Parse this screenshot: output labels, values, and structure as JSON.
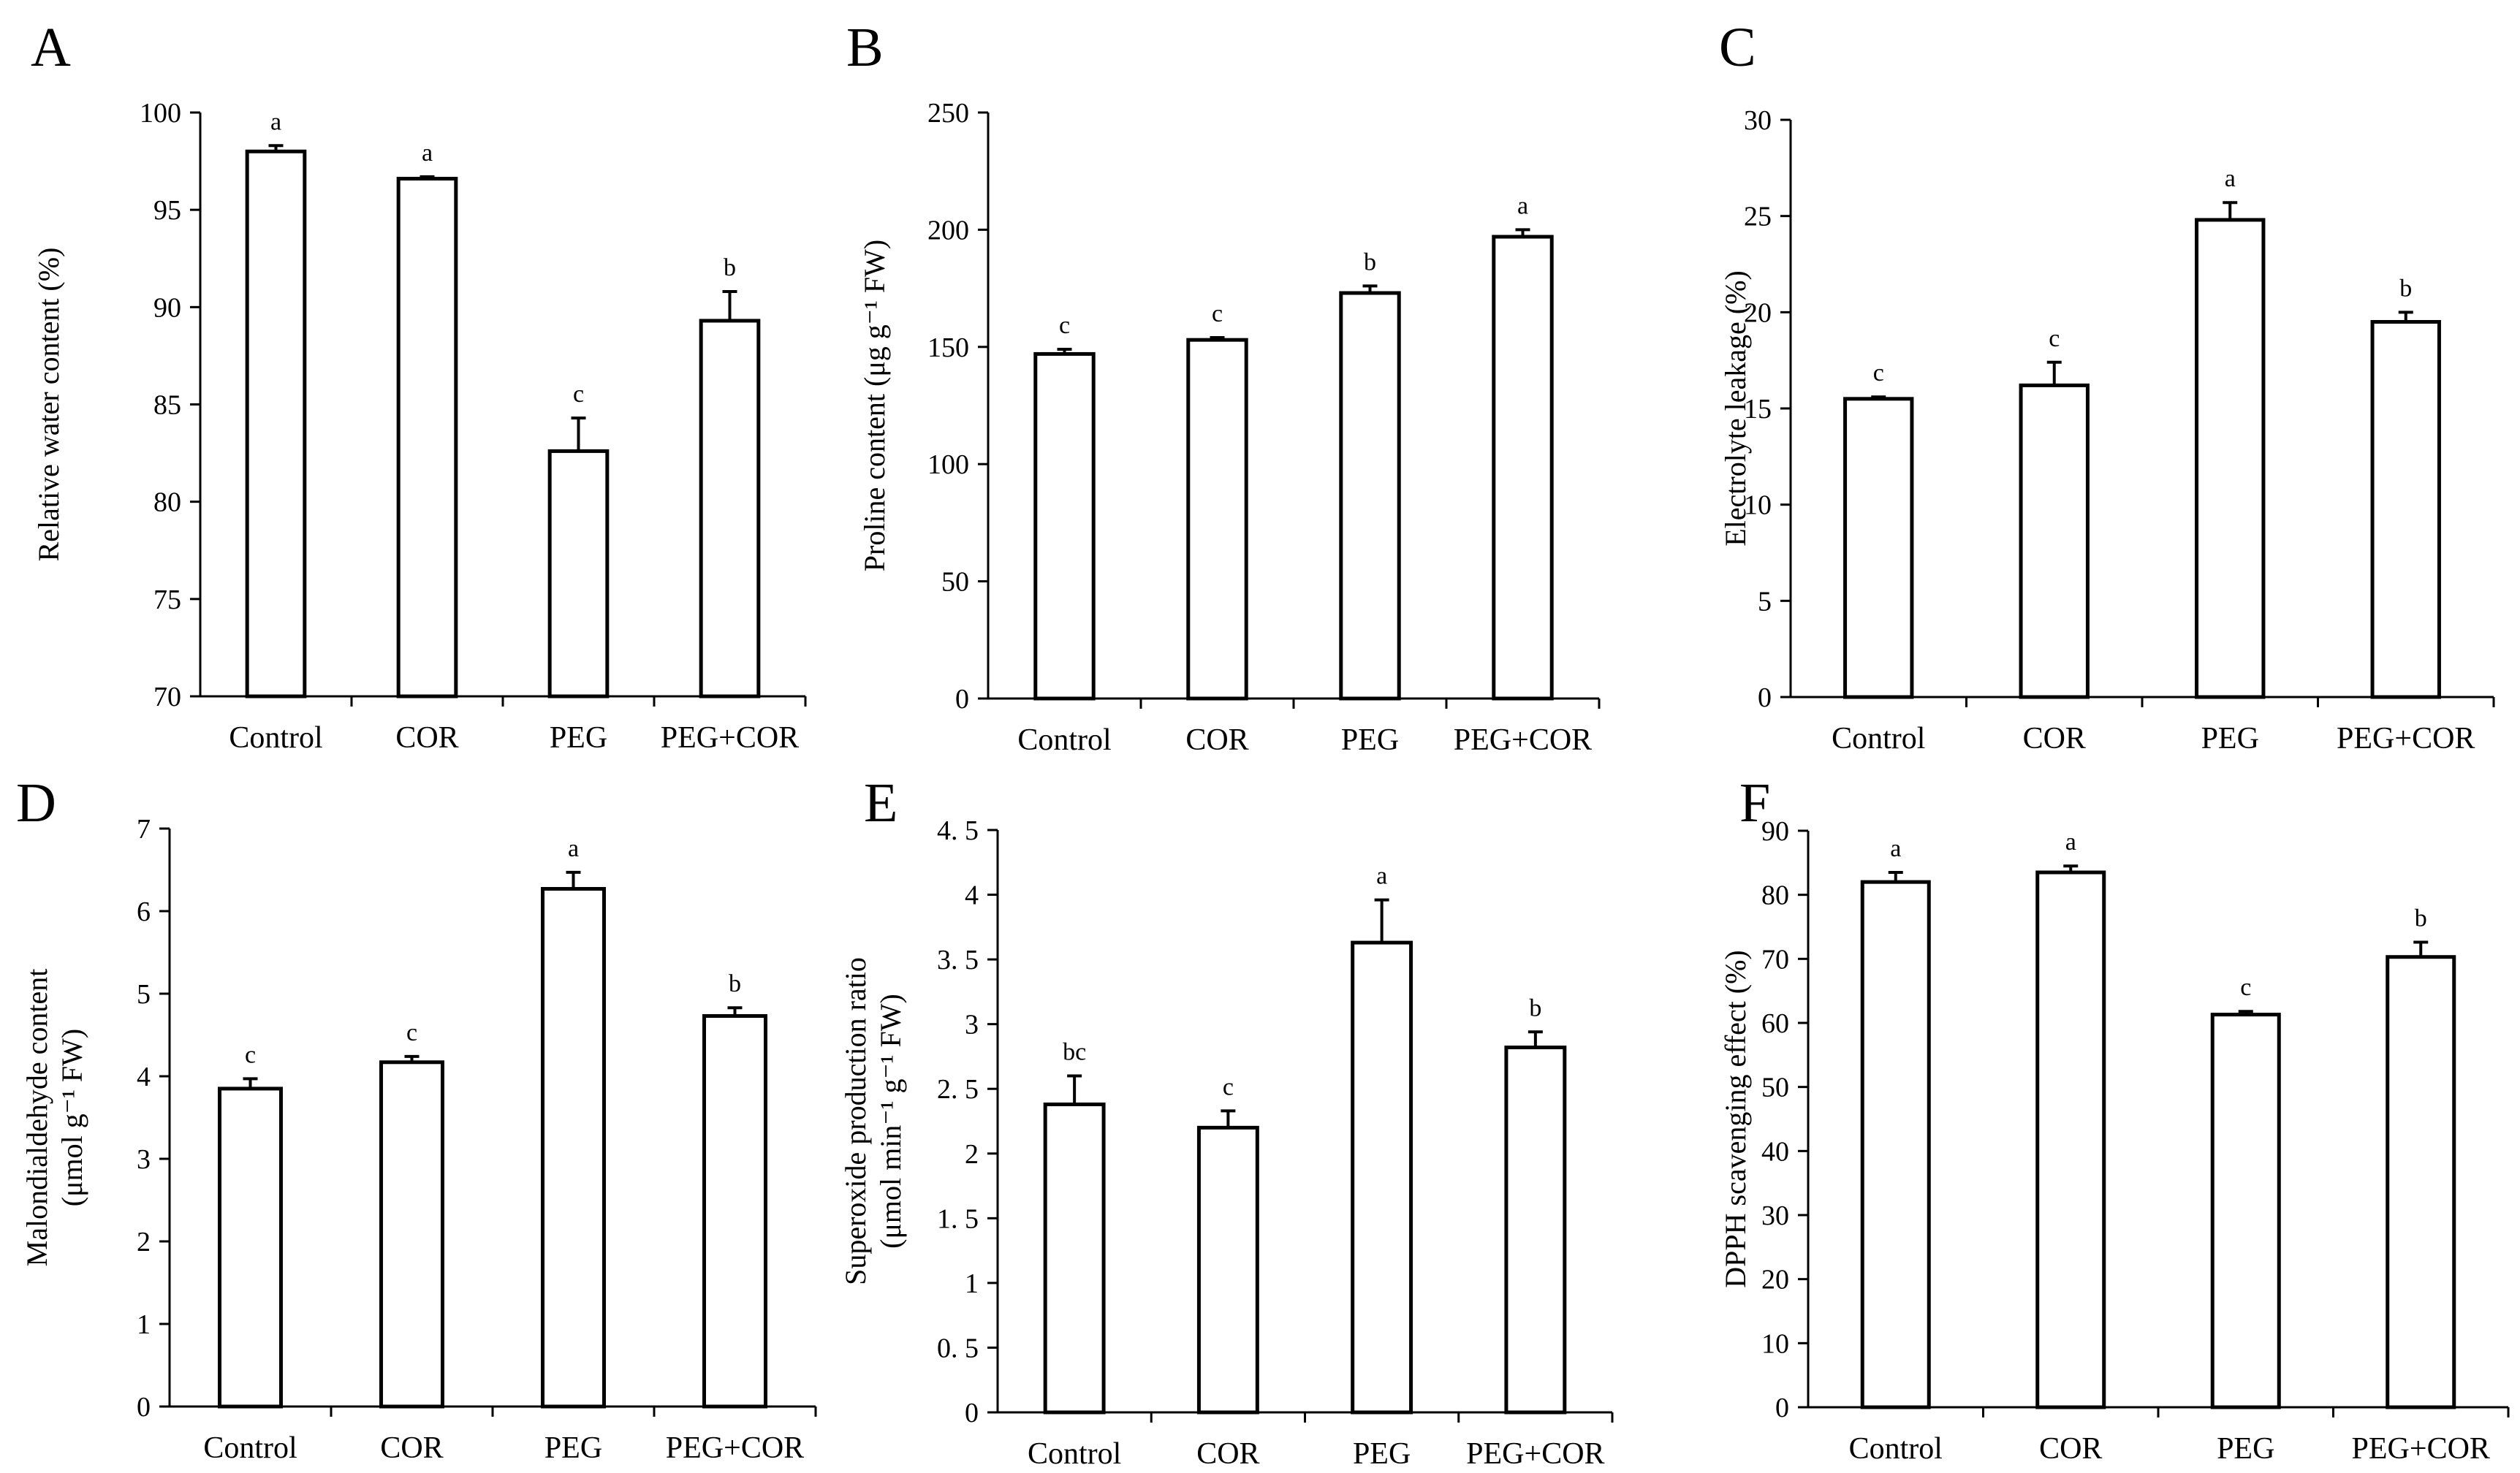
{
  "chart_data": [
    {
      "panel": "A",
      "type": "bar",
      "categories": [
        "Control",
        "COR",
        "PEG",
        "PEG+COR"
      ],
      "values": [
        98.0,
        96.6,
        82.6,
        89.3
      ],
      "errors": [
        0.3,
        0.1,
        1.7,
        1.5
      ],
      "significance": [
        "a",
        "a",
        "c",
        "b"
      ],
      "ylabel_lines": [
        "Relative water content (%)"
      ],
      "ylim": [
        70,
        100
      ],
      "yticks": [
        70,
        75,
        80,
        85,
        90,
        95,
        100
      ],
      "ytick_labels": [
        "70",
        "75",
        "80",
        "85",
        "90",
        "95",
        "100"
      ]
    },
    {
      "panel": "B",
      "type": "bar",
      "categories": [
        "Control",
        "COR",
        "PEG",
        "PEG+COR"
      ],
      "values": [
        147,
        153,
        173,
        197
      ],
      "errors": [
        2,
        1,
        3,
        3
      ],
      "significance": [
        "c",
        "c",
        "b",
        "a"
      ],
      "ylabel_lines": [
        "Proline content (μg g⁻¹ FW)"
      ],
      "ylim": [
        0,
        250
      ],
      "yticks": [
        0,
        50,
        100,
        150,
        200,
        250
      ],
      "ytick_labels": [
        "0",
        "50",
        "100",
        "150",
        "200",
        "250"
      ]
    },
    {
      "panel": "C",
      "type": "bar",
      "categories": [
        "Control",
        "COR",
        "PEG",
        "PEG+COR"
      ],
      "values": [
        15.5,
        16.2,
        24.8,
        19.5
      ],
      "errors": [
        0.1,
        1.2,
        0.9,
        0.5
      ],
      "significance": [
        "c",
        "c",
        "a",
        "b"
      ],
      "ylabel_lines": [
        "Electrolyte leakage (%)"
      ],
      "ylim": [
        0,
        30
      ],
      "yticks": [
        0,
        5,
        10,
        15,
        20,
        25,
        30
      ],
      "ytick_labels": [
        "0",
        "5",
        "10",
        "15",
        "20",
        "25",
        "30"
      ]
    },
    {
      "panel": "D",
      "type": "bar",
      "categories": [
        "Control",
        "COR",
        "PEG",
        "PEG+COR"
      ],
      "values": [
        3.85,
        4.17,
        6.27,
        4.73
      ],
      "errors": [
        0.12,
        0.07,
        0.2,
        0.1
      ],
      "significance": [
        "c",
        "c",
        "a",
        "b"
      ],
      "ylabel_lines": [
        "Malondialdehyde content",
        "(μmol g⁻¹ FW)"
      ],
      "ylim": [
        0,
        7
      ],
      "yticks": [
        0,
        1,
        2,
        3,
        4,
        5,
        6,
        7
      ],
      "ytick_labels": [
        "0",
        "1",
        "2",
        "3",
        "4",
        "5",
        "6",
        "7"
      ]
    },
    {
      "panel": "E",
      "type": "bar",
      "categories": [
        "Control",
        "COR",
        "PEG",
        "PEG+COR"
      ],
      "values": [
        2.38,
        2.2,
        3.63,
        2.82
      ],
      "errors": [
        0.22,
        0.13,
        0.33,
        0.12
      ],
      "significance": [
        "bc",
        "c",
        "a",
        "b"
      ],
      "ylabel_lines": [
        "Superoxide production ratio",
        "(μmol min⁻¹ g⁻¹ FW)"
      ],
      "ylim": [
        0,
        4.5
      ],
      "yticks": [
        0,
        0.5,
        1,
        1.5,
        2,
        2.5,
        3,
        3.5,
        4,
        4.5
      ],
      "ytick_labels": [
        "0",
        "0. 5",
        "1",
        "1. 5",
        "2",
        "2. 5",
        "3",
        "3. 5",
        "4",
        "4. 5"
      ]
    },
    {
      "panel": "F",
      "type": "bar",
      "categories": [
        "Control",
        "COR",
        "PEG",
        "PEG+COR"
      ],
      "values": [
        82,
        83.5,
        61.3,
        70.3
      ],
      "errors": [
        1.5,
        1.0,
        0.5,
        2.3
      ],
      "significance": [
        "a",
        "a",
        "c",
        "b"
      ],
      "ylabel_lines": [
        "DPPH scavenging effect (%)"
      ],
      "ylim": [
        0,
        90
      ],
      "yticks": [
        0,
        10,
        20,
        30,
        40,
        50,
        60,
        70,
        80,
        90
      ],
      "ytick_labels": [
        "0",
        "10",
        "20",
        "30",
        "40",
        "50",
        "60",
        "70",
        "80",
        "90"
      ]
    }
  ]
}
